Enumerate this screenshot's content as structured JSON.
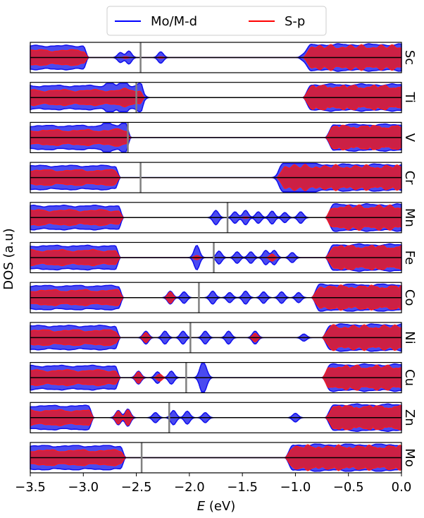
{
  "chart_data": {
    "type": "area",
    "xlabel_symbol": "E",
    "xlabel_unit": " (eV)",
    "ylabel": "DOS (a.u)",
    "xlim": [
      -3.5,
      0.0
    ],
    "xticks": [
      -3.5,
      -3.0,
      -2.5,
      -2.0,
      -1.5,
      -1.0,
      -0.5,
      0.0
    ],
    "xtick_labels": [
      "−3.5",
      "−3.0",
      "−2.5",
      "−2.0",
      "−1.5",
      "−1.0",
      "−0.5",
      "0.0"
    ],
    "legend": {
      "placement": "top-center",
      "entries": [
        {
          "name": "Mo/M-d",
          "color": "#0000ff"
        },
        {
          "name": "S-p",
          "color": "#ff0000"
        }
      ]
    },
    "colors": {
      "d_fill": "#4a4af0",
      "d_line": "#1010ee",
      "p_fill": "#cc2045",
      "p_line": "#ff1a1a",
      "fermi_line": "#808080",
      "zero_line": "#000000"
    },
    "panels": [
      {
        "label": "Sc",
        "fermi": -2.46,
        "gap": [
          -2.95,
          -0.93
        ],
        "d_peaks": [
          [
            -2.65,
            0.35
          ],
          [
            -2.57,
            0.45
          ],
          [
            -2.27,
            0.4
          ],
          [
            -0.92,
            0.25
          ]
        ],
        "p_peaks": [
          [
            -2.6,
            0.06
          ],
          [
            -2.27,
            0.05
          ]
        ]
      },
      {
        "label": "Ti",
        "fermi": -2.5,
        "gap": [
          -2.42,
          -0.93
        ],
        "d_peaks": [
          [
            -2.75,
            0.45
          ],
          [
            -2.62,
            0.55
          ],
          [
            -2.45,
            0.4
          ]
        ],
        "p_peaks": [
          [
            -2.62,
            0.1
          ]
        ]
      },
      {
        "label": "V",
        "fermi": -2.58,
        "gap": [
          -2.55,
          -0.72
        ],
        "d_peaks": [
          [
            -2.78,
            0.45
          ],
          [
            -2.62,
            0.35
          ]
        ],
        "p_peaks": [
          [
            -2.7,
            0.08
          ]
        ]
      },
      {
        "label": "Cr",
        "fermi": -2.46,
        "gap": [
          -2.65,
          -1.18
        ],
        "d_peaks": [
          [
            -1.15,
            0.35
          ],
          [
            -1.05,
            0.5
          ],
          [
            -0.95,
            0.6
          ],
          [
            -0.85,
            0.45
          ]
        ],
        "p_peaks": [
          [
            -1.0,
            0.1
          ]
        ]
      },
      {
        "label": "Mn",
        "fermi": -1.64,
        "gap": [
          -2.62,
          -0.72
        ],
        "d_peaks": [
          [
            -1.75,
            0.5
          ],
          [
            -1.57,
            0.4
          ],
          [
            -1.47,
            0.5
          ],
          [
            -1.35,
            0.4
          ],
          [
            -1.22,
            0.45
          ],
          [
            -1.1,
            0.35
          ],
          [
            -0.95,
            0.4
          ]
        ],
        "p_peaks": [
          [
            -1.47,
            0.05
          ]
        ]
      },
      {
        "label": "Fe",
        "fermi": -1.77,
        "gap": [
          -2.65,
          -0.72
        ],
        "d_peaks": [
          [
            -1.93,
            0.85
          ],
          [
            -1.72,
            0.45
          ],
          [
            -1.55,
            0.4
          ],
          [
            -1.42,
            0.4
          ],
          [
            -1.28,
            0.5
          ],
          [
            -1.2,
            0.5
          ],
          [
            -1.03,
            0.35
          ]
        ],
        "p_peaks": [
          [
            -1.93,
            0.15
          ],
          [
            -1.22,
            0.25
          ]
        ]
      },
      {
        "label": "Co",
        "fermi": -1.91,
        "gap": [
          -2.62,
          -0.85
        ],
        "d_peaks": [
          [
            -2.18,
            0.45
          ],
          [
            -2.05,
            0.4
          ],
          [
            -1.78,
            0.45
          ],
          [
            -1.62,
            0.35
          ],
          [
            -1.47,
            0.45
          ],
          [
            -1.3,
            0.4
          ],
          [
            -1.13,
            0.4
          ],
          [
            -0.97,
            0.35
          ]
        ],
        "p_peaks": [
          [
            -2.18,
            0.4
          ]
        ]
      },
      {
        "label": "Ni",
        "fermi": -1.99,
        "gap": [
          -2.65,
          -0.75
        ],
        "d_peaks": [
          [
            -2.41,
            0.45
          ],
          [
            -2.23,
            0.45
          ],
          [
            -2.06,
            0.45
          ],
          [
            -1.85,
            0.45
          ],
          [
            -1.63,
            0.45
          ],
          [
            -1.38,
            0.45
          ],
          [
            -0.92,
            0.25
          ]
        ],
        "p_peaks": [
          [
            -2.41,
            0.35
          ],
          [
            -1.38,
            0.3
          ]
        ]
      },
      {
        "label": "Cu",
        "fermi": -2.03,
        "gap": [
          -2.65,
          -0.75
        ],
        "d_peaks": [
          [
            -2.48,
            0.45
          ],
          [
            -2.3,
            0.4
          ],
          [
            -2.17,
            0.45
          ],
          [
            -1.88,
            0.85
          ],
          [
            -1.85,
            0.5
          ]
        ],
        "p_peaks": [
          [
            -2.48,
            0.4
          ],
          [
            -2.28,
            0.25
          ]
        ]
      },
      {
        "label": "Zn",
        "fermi": -2.19,
        "gap": [
          -2.9,
          -0.72
        ],
        "d_peaks": [
          [
            -2.67,
            0.5
          ],
          [
            -2.58,
            0.6
          ],
          [
            -2.32,
            0.35
          ],
          [
            -2.15,
            0.5
          ],
          [
            -2.02,
            0.45
          ],
          [
            -1.85,
            0.35
          ],
          [
            -1.0,
            0.3
          ]
        ],
        "p_peaks": [
          [
            -2.67,
            0.45
          ],
          [
            -2.58,
            0.55
          ]
        ]
      },
      {
        "label": "Mo",
        "fermi": -2.45,
        "gap": [
          -2.6,
          -1.1
        ],
        "d_peaks": [],
        "p_peaks": []
      }
    ]
  }
}
